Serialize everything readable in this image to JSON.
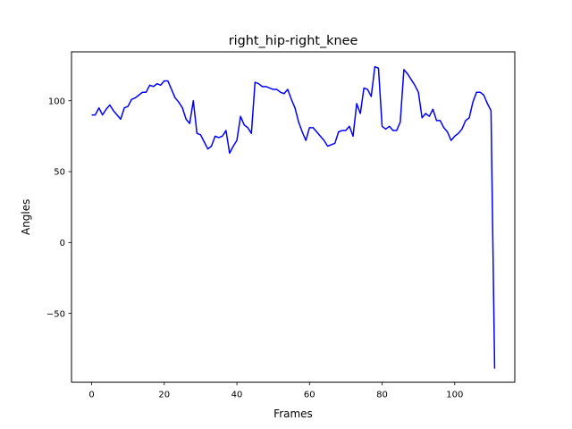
{
  "chart_data": {
    "type": "line",
    "title": "right_hip-right_knee",
    "xlabel": "Frames",
    "ylabel": "Angles",
    "xlim": [
      -5.55,
      116.55
    ],
    "ylim": [
      -98.5,
      134.5
    ],
    "xticks": [
      0,
      20,
      40,
      60,
      80,
      100
    ],
    "yticks": [
      -50,
      0,
      50,
      100
    ],
    "xtick_labels": [
      "0",
      "20",
      "40",
      "60",
      "80",
      "100"
    ],
    "ytick_labels": [
      "−50",
      "0",
      "50",
      "100"
    ],
    "grid": false,
    "series": [
      {
        "name": "right_hip-right_knee",
        "color": "#0000ff",
        "x": [
          0,
          1,
          2,
          3,
          4,
          5,
          6,
          7,
          8,
          9,
          10,
          11,
          12,
          13,
          14,
          15,
          16,
          17,
          18,
          19,
          20,
          21,
          22,
          23,
          24,
          25,
          26,
          27,
          28,
          29,
          30,
          31,
          32,
          33,
          34,
          35,
          36,
          37,
          38,
          39,
          40,
          41,
          42,
          43,
          44,
          45,
          46,
          47,
          48,
          49,
          50,
          51,
          52,
          53,
          54,
          55,
          56,
          57,
          58,
          59,
          60,
          61,
          62,
          63,
          64,
          65,
          66,
          67,
          68,
          69,
          70,
          71,
          72,
          73,
          74,
          75,
          76,
          77,
          78,
          79,
          80,
          81,
          82,
          83,
          84,
          85,
          86,
          87,
          88,
          89,
          90,
          91,
          92,
          93,
          94,
          95,
          96,
          97,
          98,
          99,
          100,
          101,
          102,
          103,
          104,
          105,
          106,
          107,
          108,
          109,
          110,
          111
        ],
        "y": [
          90,
          90,
          95,
          90,
          94,
          97,
          93,
          90,
          87,
          95,
          96,
          101,
          102,
          104,
          106,
          106,
          111,
          110,
          112,
          111,
          114,
          114,
          108,
          102,
          99,
          95,
          87,
          84,
          100,
          77,
          76,
          71,
          66,
          68,
          75,
          74,
          75,
          79,
          63,
          68,
          72,
          89,
          83,
          81,
          77,
          113,
          112,
          110,
          110,
          109,
          108,
          108,
          106,
          105,
          108,
          101,
          95,
          85,
          78,
          72,
          81,
          81,
          78,
          75,
          72,
          68,
          69,
          70,
          78,
          79,
          79,
          82,
          75,
          98,
          91,
          109,
          108,
          103,
          124,
          123,
          82,
          80,
          82,
          79,
          79,
          85,
          122,
          119,
          115,
          111,
          106,
          88,
          91,
          89,
          94,
          86,
          86,
          81,
          78,
          72,
          75,
          77,
          80,
          86,
          88,
          99,
          106,
          106,
          104,
          98,
          93,
          -89
        ]
      }
    ]
  }
}
